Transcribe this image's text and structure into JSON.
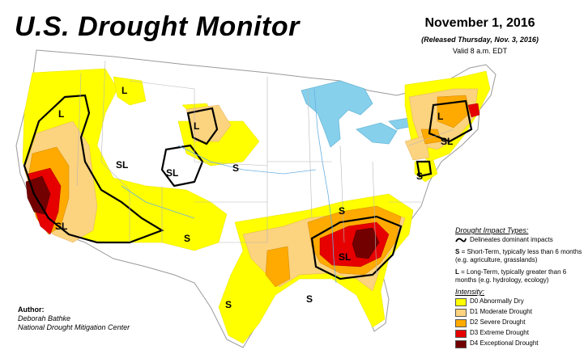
{
  "header": {
    "title": "U.S. Drought Monitor",
    "date": "November 1, 2016",
    "released": "(Released Thursday, Nov. 3, 2016)",
    "valid": "Valid 8 a.m. EDT"
  },
  "legend": {
    "impact_header": "Drought Impact Types:",
    "delineates": "Delineates dominant impacts",
    "s_key": "S",
    "s_text": "= Short-Term, typically less than 6 months (e.g. agriculture, grasslands)",
    "l_key": "L",
    "l_text": "= Long-Term, typically greater than 6 months (e.g. hydrology, ecology)",
    "intensity_header": "Intensity:",
    "levels": [
      {
        "label": "D0 Abnormally Dry",
        "color": "#ffff00"
      },
      {
        "label": "D1 Moderate Drought",
        "color": "#fcd37f"
      },
      {
        "label": "D2 Severe Drought",
        "color": "#ffaa00"
      },
      {
        "label": "D3 Extreme Drought",
        "color": "#e60000"
      },
      {
        "label": "D4 Exceptional Drought",
        "color": "#730000"
      }
    ]
  },
  "author": {
    "heading": "Author:",
    "name": "Deborah Bathke",
    "org": "National Drought Mitigation Center"
  },
  "map_labels": {
    "l_nw": "L",
    "l_mt": "L",
    "l_wy": "L",
    "sl_ut": "SL",
    "sl_co": "SL",
    "s_co": "S",
    "sl_ca": "SL",
    "s_nm": "S",
    "s_tx": "S",
    "s_la": "S",
    "s_ky": "S",
    "sl_se": "SL",
    "l_ne": "L",
    "sl_ny": "SL",
    "s_md": "S"
  }
}
